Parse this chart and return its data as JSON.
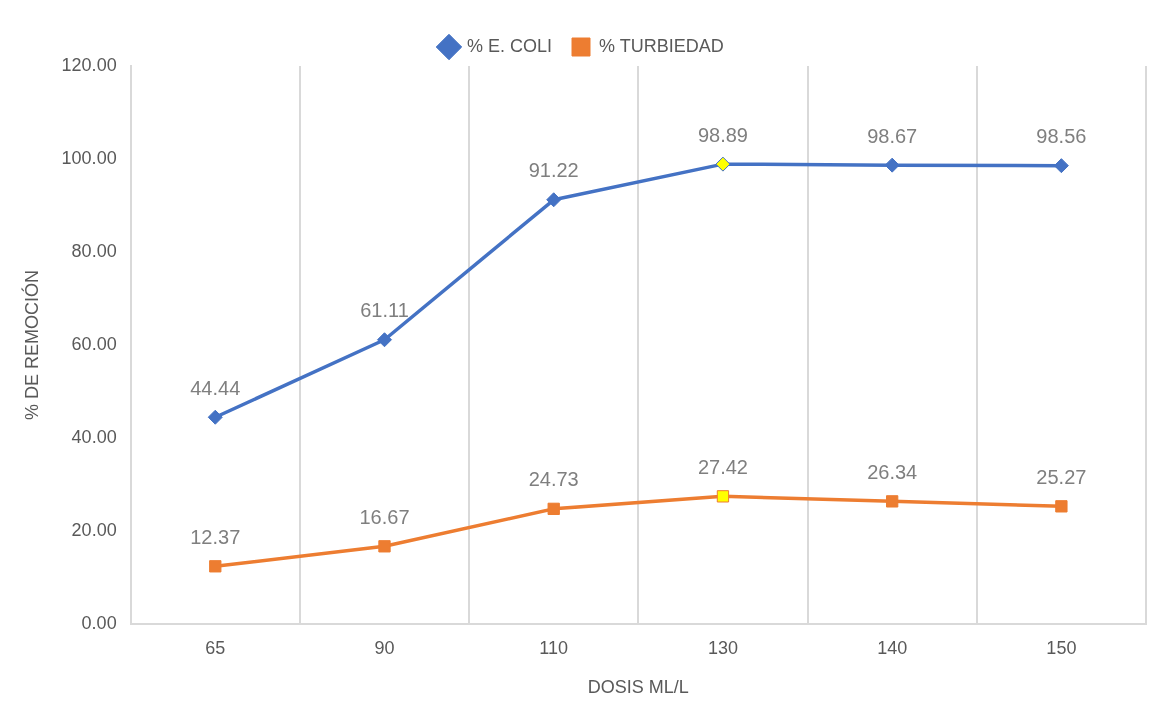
{
  "chart_data": {
    "type": "line",
    "xlabel": "DOSIS ML/L",
    "ylabel": "% DE REMOCIÓN",
    "categories": [
      "65",
      "90",
      "110",
      "130",
      "140",
      "150"
    ],
    "series": [
      {
        "name": "% E. COLI",
        "color": "#4472c4",
        "marker": "diamond",
        "colors": [
          "#4472c4",
          "#4472c4",
          "#4472c4",
          "#ffff00",
          "#4472c4",
          "#4472c4"
        ],
        "values": [
          44.44,
          61.11,
          91.22,
          98.89,
          98.67,
          98.56
        ]
      },
      {
        "name": "% TURBIEDAD",
        "color": "#ed7d31",
        "marker": "square",
        "colors": [
          "#ed7d31",
          "#ed7d31",
          "#ed7d31",
          "#ffff00",
          "#ed7d31",
          "#ed7d31"
        ],
        "values": [
          12.37,
          16.67,
          24.73,
          27.42,
          26.34,
          25.27
        ]
      }
    ],
    "ylim": [
      0,
      120
    ],
    "yticks": [
      {
        "value": 0,
        "label": "0.00"
      },
      {
        "value": 20,
        "label": "20.00"
      },
      {
        "value": 40,
        "label": "40.00"
      },
      {
        "value": 60,
        "label": "60.00"
      },
      {
        "value": 80,
        "label": "80.00"
      },
      {
        "value": 100,
        "label": "100.00"
      },
      {
        "value": 120,
        "label": "120.00"
      }
    ],
    "grid": "x",
    "legend": "top",
    "data_labels": true
  }
}
